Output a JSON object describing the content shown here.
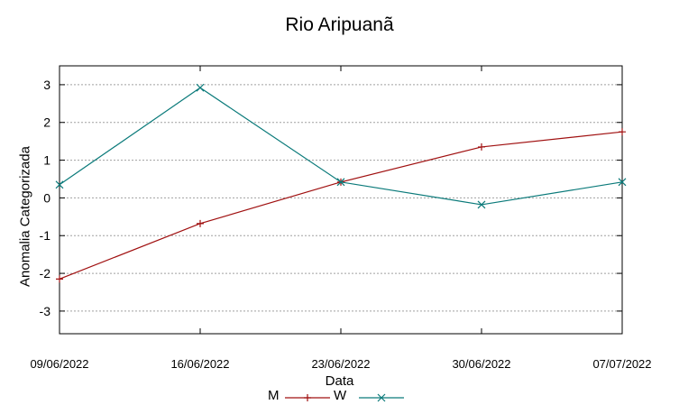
{
  "chart_data": {
    "type": "line",
    "title": "Rio Aripuanã",
    "xlabel": "Data",
    "ylabel": "Anomalia Categorizada",
    "categories": [
      "09/06/2022",
      "16/06/2022",
      "23/06/2022",
      "30/06/2022",
      "07/07/2022"
    ],
    "yticks": [
      "3",
      "2",
      "1",
      "0",
      "-1",
      "-2",
      "-3"
    ],
    "ylim": [
      -3.6,
      3.5
    ],
    "grid": true,
    "legend_position": "bottom-center",
    "series": [
      {
        "name": "M",
        "color": "#a01010",
        "marker": "plus",
        "values": [
          -2.15,
          -0.68,
          0.42,
          1.35,
          1.75
        ]
      },
      {
        "name": "W",
        "color": "#0a7a7a",
        "marker": "cross",
        "values": [
          0.35,
          2.92,
          0.42,
          -0.18,
          0.42
        ]
      }
    ]
  }
}
